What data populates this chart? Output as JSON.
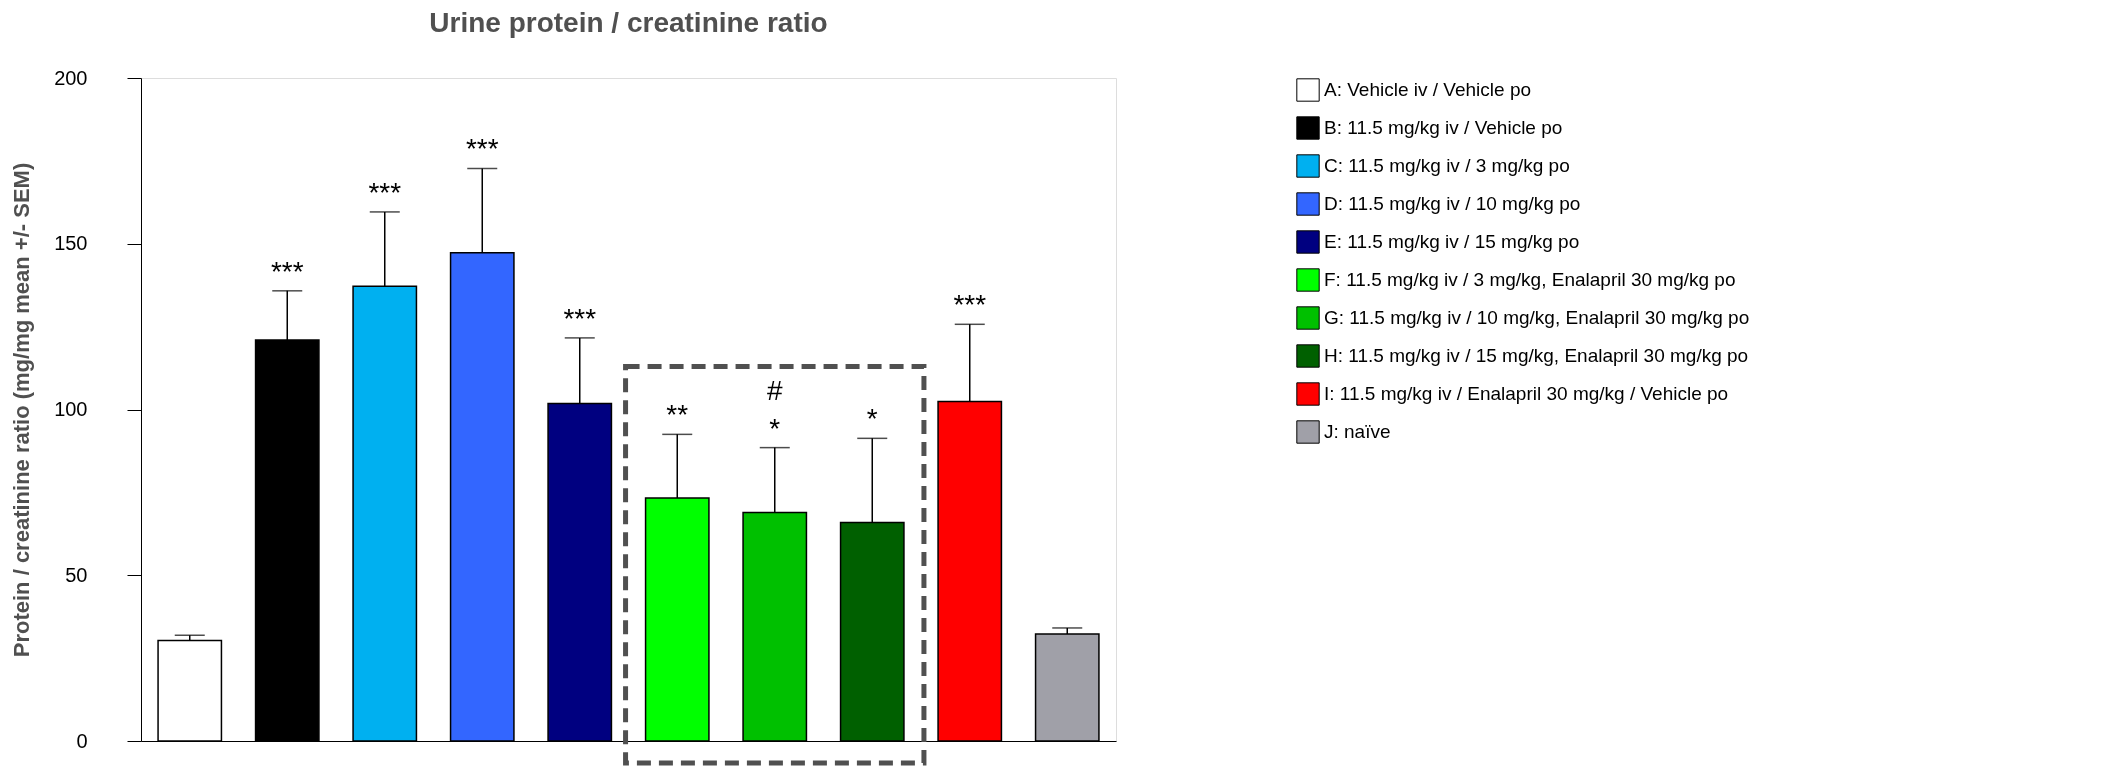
{
  "chart_data": {
    "type": "bar",
    "title": "Urine protein / creatinine ratio",
    "ylabel": "Protein / creatinine ratio (mg/mg mean +/- SEM)",
    "categories": [
      null,
      null,
      null,
      null,
      null,
      null,
      null,
      null,
      null,
      null
    ],
    "series": [
      {
        "name": "A: Vehicle iv / Vehicle po",
        "color": "#ffffff",
        "values": [
          30.3,
          null,
          null,
          null,
          null,
          null,
          null,
          null,
          null,
          null
        ],
        "errors": [
          [
            30.3,
            31.9
          ],
          null,
          null,
          null,
          null,
          null,
          null,
          null,
          null,
          null
        ]
      },
      {
        "name": "B: 11.5 mg/kg iv / Vehicle po",
        "color": "#000000",
        "values": [
          null,
          121,
          null,
          null,
          null,
          null,
          null,
          null,
          null,
          null
        ],
        "errors": [
          null,
          [
            121,
            135.8
          ],
          null,
          null,
          null,
          null,
          null,
          null,
          null,
          null
        ]
      },
      {
        "name": "C: 11.5 mg/kg iv / 3 mg/kg po",
        "color": "#00b0f0",
        "values": [
          null,
          null,
          137.2,
          null,
          null,
          null,
          null,
          null,
          null,
          null
        ],
        "errors": [
          null,
          null,
          [
            137.2,
            159.6
          ],
          null,
          null,
          null,
          null,
          null,
          null,
          null
        ]
      },
      {
        "name": "D: 11.5 mg/kg iv / 10 mg/kg po",
        "color": "#3366ff",
        "values": [
          null,
          null,
          null,
          147.3,
          null,
          null,
          null,
          null,
          null,
          null
        ],
        "errors": [
          null,
          null,
          null,
          [
            147.3,
            172.7
          ],
          null,
          null,
          null,
          null,
          null,
          null
        ]
      },
      {
        "name": "E: 11.5 mg/kg iv / 15 mg/kg po",
        "color": "#000080",
        "values": [
          null,
          null,
          null,
          null,
          101.8,
          null,
          null,
          null,
          null,
          null
        ],
        "errors": [
          null,
          null,
          null,
          null,
          [
            101.8,
            121.6
          ],
          null,
          null,
          null,
          null,
          null
        ]
      },
      {
        "name": "F: 11.5 mg/kg iv / 3 mg/kg, Enalapril 30 mg/kg po",
        "color": "#00ff00",
        "values": [
          null,
          null,
          null,
          null,
          null,
          73.3,
          null,
          null,
          null,
          null
        ],
        "errors": [
          null,
          null,
          null,
          null,
          null,
          [
            73.3,
            92.5
          ],
          null,
          null,
          null,
          null
        ]
      },
      {
        "name": "G: 11.5 mg/kg iv / 10 mg/kg, Enalapril 30 mg/kg po",
        "color": "#00c000",
        "values": [
          null,
          null,
          null,
          null,
          null,
          null,
          68.9,
          null,
          null,
          null
        ],
        "errors": [
          null,
          null,
          null,
          null,
          null,
          null,
          [
            68.9,
            88.5
          ],
          null,
          null,
          null
        ]
      },
      {
        "name": "H: 11.5 mg/kg iv / 15 mg/kg, Enalapril 30 mg/kg po",
        "color": "#006000",
        "values": [
          null,
          null,
          null,
          null,
          null,
          null,
          null,
          65.9,
          null,
          null
        ],
        "errors": [
          null,
          null,
          null,
          null,
          null,
          null,
          null,
          [
            65.9,
            91.3
          ],
          null,
          null
        ]
      },
      {
        "name": "I: 11.5 mg/kg iv / Enalapril 30 mg/kg / Vehicle po",
        "color": "#ff0000",
        "values": [
          null,
          null,
          null,
          null,
          null,
          null,
          null,
          null,
          102.4,
          null
        ],
        "errors": [
          null,
          null,
          null,
          null,
          null,
          null,
          null,
          null,
          [
            102.4,
            125.7
          ],
          null
        ]
      },
      {
        "name": "J: naïve",
        "color": "#a0a0a8",
        "values": [
          null,
          null,
          null,
          null,
          null,
          null,
          null,
          null,
          null,
          32.3
        ],
        "errors": [
          null,
          null,
          null,
          null,
          null,
          null,
          null,
          null,
          null,
          [
            32.3,
            34.1
          ]
        ]
      }
    ],
    "annotations": [
      "***",
      "***",
      "***",
      "***",
      "**",
      "*",
      "#",
      "*",
      "***"
    ],
    "ylim": [
      0,
      200
    ],
    "yticks": [
      0,
      50,
      100,
      150,
      200
    ],
    "grid": false,
    "legend": "right",
    "tick_labels": "y"
  }
}
